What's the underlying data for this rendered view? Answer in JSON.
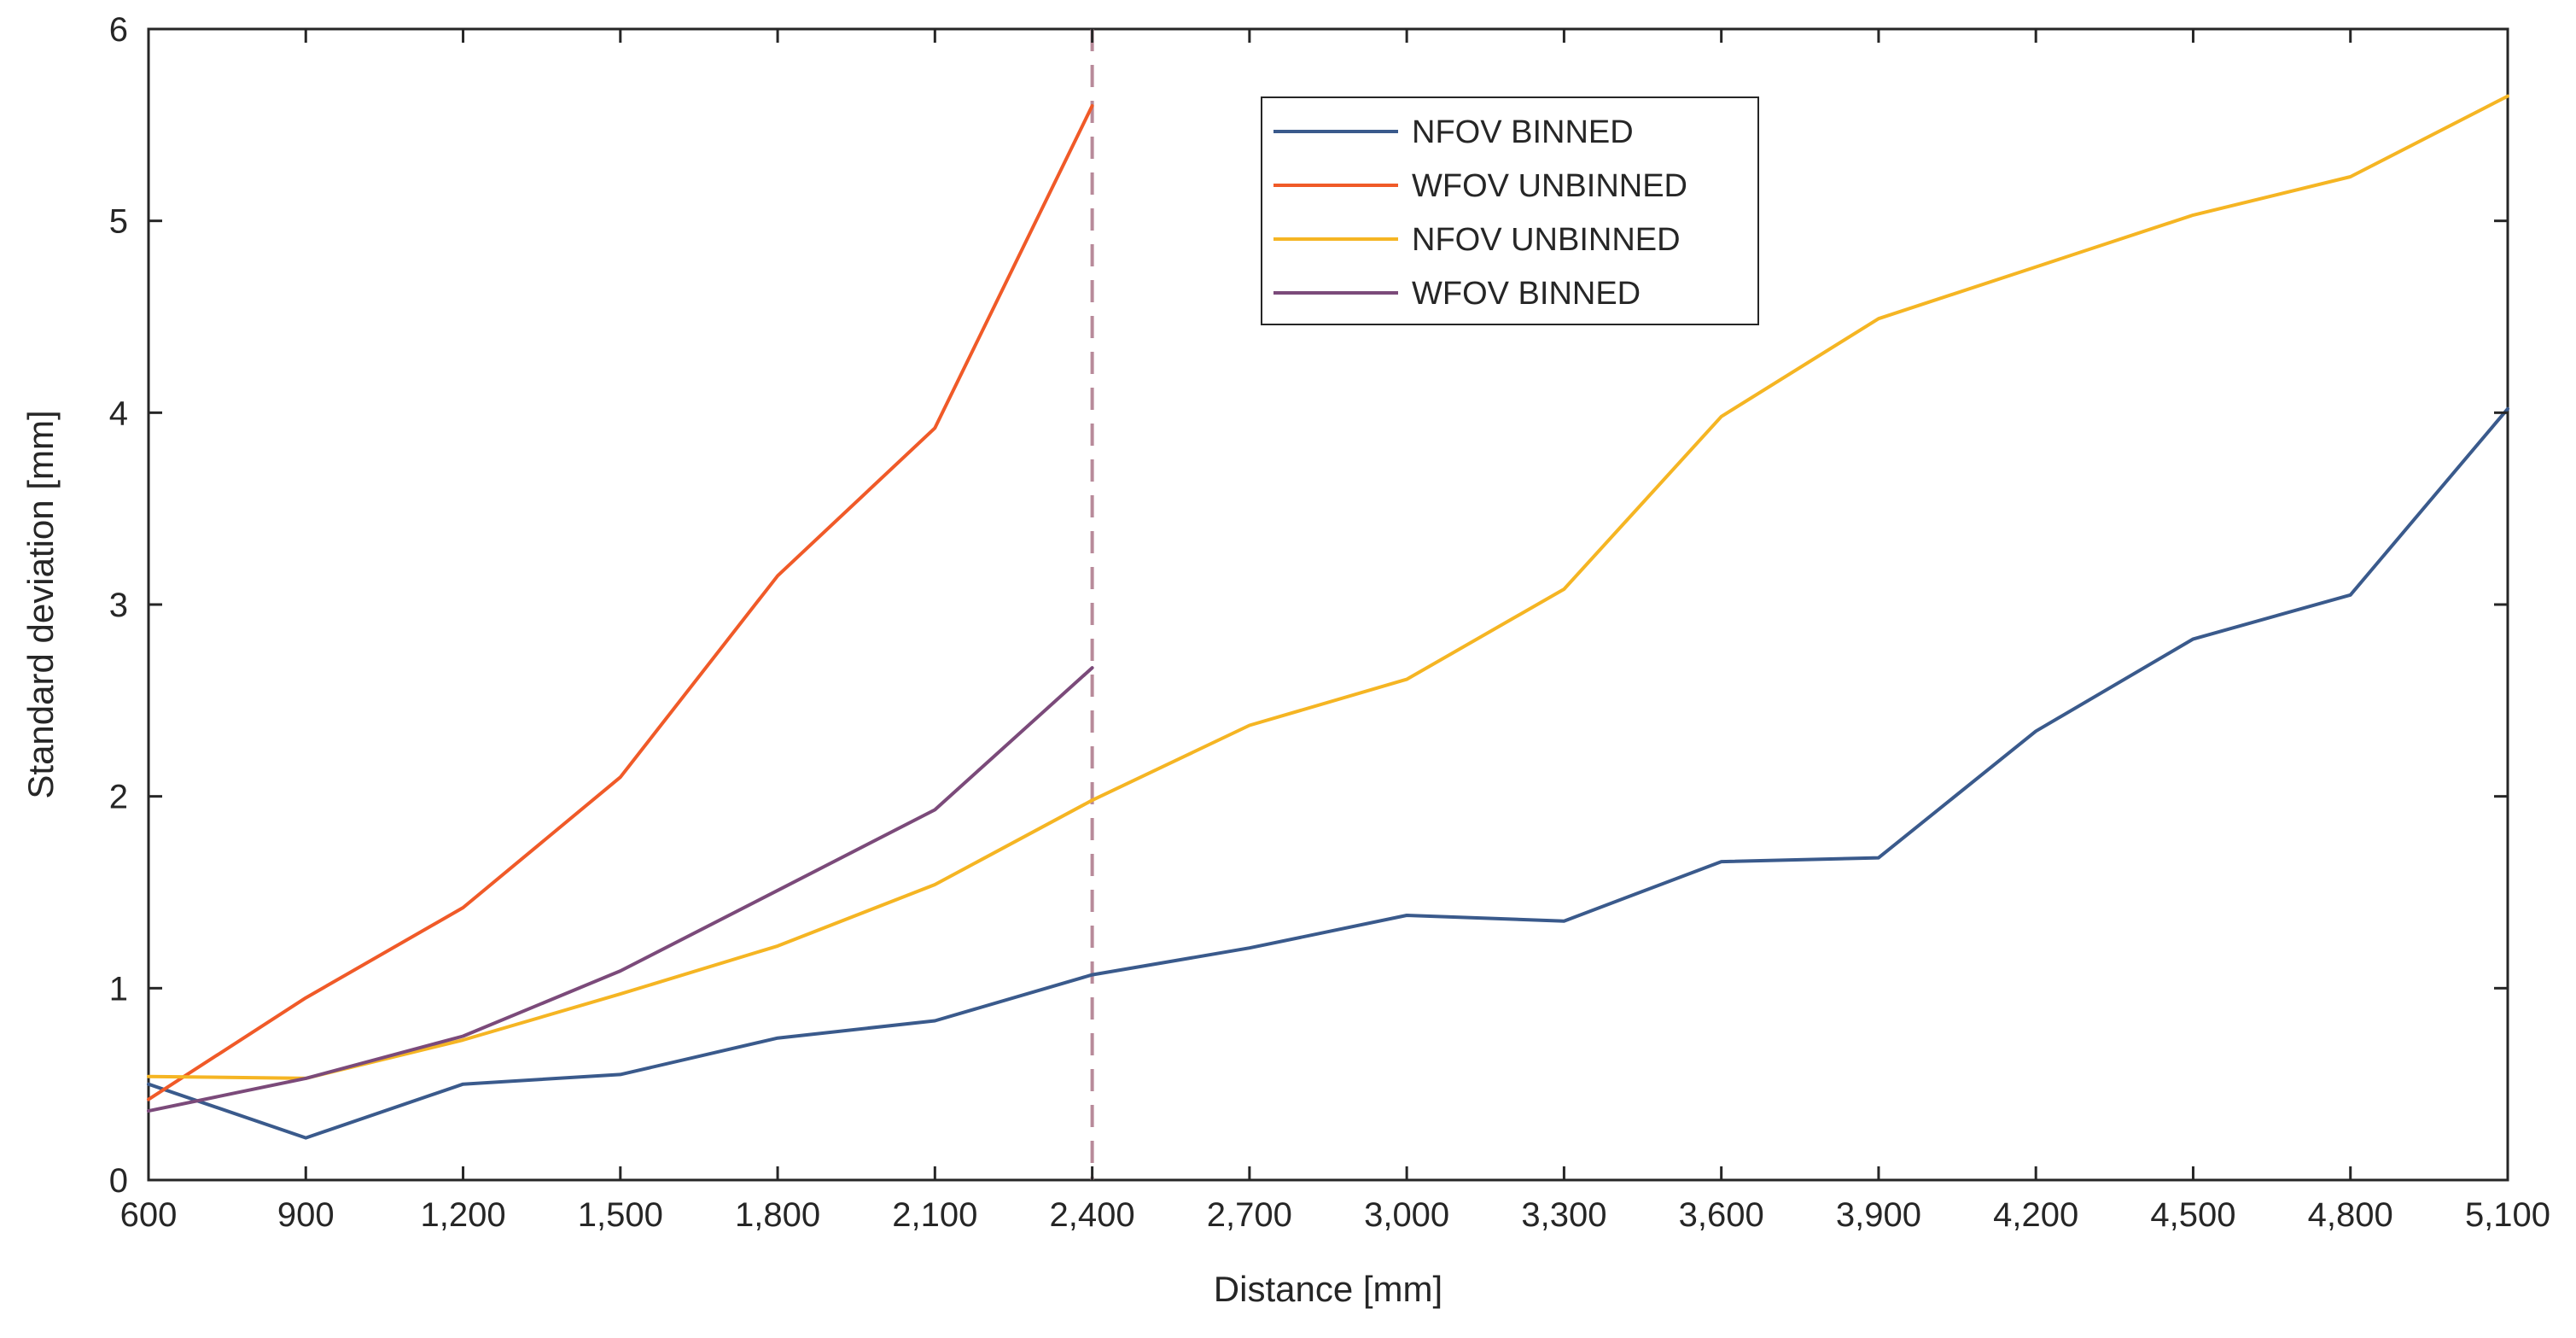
{
  "chart_data": {
    "type": "line",
    "title": "",
    "xlabel": "Distance [mm]",
    "ylabel": "Standard deviation [mm]",
    "xlim": [
      600,
      5100
    ],
    "ylim": [
      0,
      6
    ],
    "x_ticks": [
      600,
      900,
      1200,
      1500,
      1800,
      2100,
      2400,
      2700,
      3000,
      3300,
      3600,
      3900,
      4200,
      4500,
      4800,
      5100
    ],
    "x_tick_labels": [
      "600",
      "900",
      "1,200",
      "1,500",
      "1,800",
      "2,100",
      "2,400",
      "2,700",
      "3,000",
      "3,300",
      "3,600",
      "3,900",
      "4,200",
      "4,500",
      "4,800",
      "5,100"
    ],
    "y_ticks": [
      0,
      1,
      2,
      3,
      4,
      5,
      6
    ],
    "y_tick_labels": [
      "0",
      "1",
      "2",
      "3",
      "4",
      "5",
      "6"
    ],
    "grid": false,
    "legend_position": "top-center",
    "series": [
      {
        "name": "NFOV BINNED",
        "color": "#3a5a8c",
        "x": [
          600,
          900,
          1200,
          1500,
          1800,
          2100,
          2400,
          2700,
          3000,
          3300,
          3600,
          3900,
          4200,
          4500,
          4800,
          5100
        ],
        "values": [
          0.5,
          0.22,
          0.5,
          0.55,
          0.74,
          0.83,
          1.07,
          1.21,
          1.38,
          1.35,
          1.66,
          1.68,
          2.34,
          2.82,
          3.05,
          4.02
        ]
      },
      {
        "name": "WFOV UNBINNED",
        "color": "#f05a28",
        "x": [
          600,
          900,
          1200,
          1500,
          1800,
          2100,
          2400
        ],
        "values": [
          0.42,
          0.95,
          1.42,
          2.1,
          3.15,
          3.92,
          5.6
        ]
      },
      {
        "name": "NFOV UNBINNED",
        "color": "#f5b523",
        "x": [
          600,
          900,
          1200,
          1500,
          1800,
          2100,
          2400,
          2700,
          3000,
          3300,
          3600,
          3900,
          4200,
          4500,
          4800,
          5100
        ],
        "values": [
          0.54,
          0.53,
          0.73,
          0.97,
          1.22,
          1.54,
          1.98,
          2.37,
          2.61,
          3.08,
          3.98,
          4.49,
          4.76,
          5.03,
          5.23,
          5.65
        ]
      },
      {
        "name": "WFOV BINNED",
        "color": "#7b4a7a",
        "x": [
          600,
          900,
          1200,
          1500,
          1800,
          2100,
          2400
        ],
        "values": [
          0.36,
          0.53,
          0.75,
          1.09,
          1.51,
          1.93,
          2.67
        ]
      }
    ],
    "annotations": [
      {
        "type": "vertical-dashed-line",
        "x": 2400,
        "color": "#b88a9a"
      }
    ]
  }
}
